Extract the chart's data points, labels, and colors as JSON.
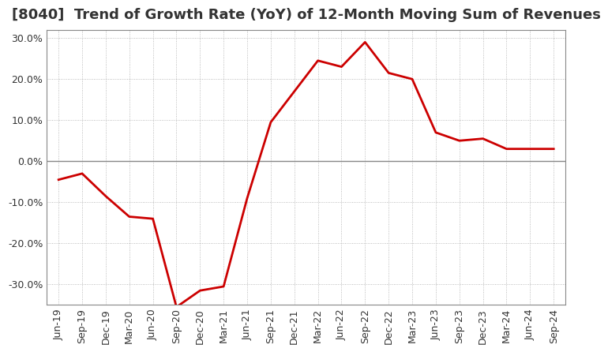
{
  "title": "[8040]  Trend of Growth Rate (YoY) of 12-Month Moving Sum of Revenues",
  "title_fontsize": 13,
  "background_color": "#ffffff",
  "plot_bg_color": "#ffffff",
  "line_color": "#cc0000",
  "line_width": 2.0,
  "x_labels": [
    "Jun-19",
    "Sep-19",
    "Dec-19",
    "Mar-20",
    "Jun-20",
    "Sep-20",
    "Dec-20",
    "Mar-21",
    "Jun-21",
    "Sep-21",
    "Dec-21",
    "Mar-22",
    "Jun-22",
    "Sep-22",
    "Dec-22",
    "Mar-23",
    "Jun-23",
    "Sep-23",
    "Dec-23",
    "Mar-24",
    "Jun-24",
    "Sep-24"
  ],
  "y_values": [
    -4.5,
    -3.0,
    -8.5,
    -13.5,
    -14.0,
    -35.5,
    -31.5,
    -30.5,
    -9.0,
    9.5,
    17.0,
    24.5,
    23.0,
    29.0,
    21.5,
    20.0,
    7.0,
    5.0,
    5.5,
    3.0,
    3.0,
    3.0
  ],
  "ylim": [
    -35,
    32
  ],
  "yticks": [
    -30,
    -20,
    -10,
    0,
    10,
    20,
    30
  ],
  "ytick_labels": [
    "-30.0%",
    "-20.0%",
    "-10.0%",
    "0.0%",
    "10.0%",
    "20.0%",
    "30.0%"
  ],
  "grid_color": "#aaaaaa",
  "zero_line_color": "#888888",
  "tick_color": "#333333",
  "tick_fontsize": 9,
  "title_color": "#333333",
  "border_color": "#888888"
}
